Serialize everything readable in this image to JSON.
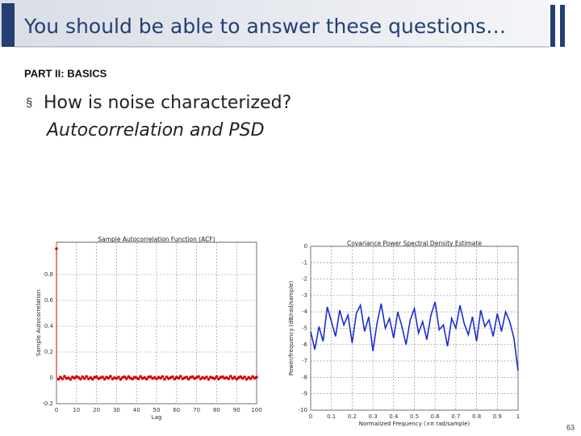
{
  "header": {
    "title": "You should be able to answer these questions…"
  },
  "section": "PART II: BASICS",
  "bullet": {
    "marker": "§",
    "question": "How is noise characterized?",
    "answer": "Autocorrelation and PSD"
  },
  "page_number": "63",
  "chart_data": [
    {
      "type": "stem",
      "title": "Sample Autocorrelation Function (ACF)",
      "x_label": "Lag",
      "y_label": "Sample Autocorrelation",
      "color": "#d40000",
      "grid": true,
      "xlim": [
        0,
        100
      ],
      "xticks": [
        0,
        10,
        20,
        30,
        40,
        50,
        60,
        70,
        80,
        90,
        100
      ],
      "ylim": [
        -0.2,
        1.05
      ],
      "yticks": [
        -0.2,
        0,
        0.2,
        0.4,
        0.6,
        0.8
      ],
      "values": [
        1,
        -0.01,
        0.005,
        -0.008,
        0.012,
        -0.004,
        0.0,
        -0.012,
        0.006,
        -0.002,
        0.01,
        0.003,
        -0.009,
        0.008,
        -0.005,
        0.011,
        -0.007,
        0.002,
        -0.011,
        0.004,
        0.009,
        -0.006,
        0.0,
        0.007,
        -0.01,
        0.005,
        -0.003,
        0.012,
        -0.008,
        0.001,
        -0.004,
        0.006,
        -0.012,
        0.003,
        0.008,
        -0.006,
        0.01,
        -0.002,
        -0.009,
        0.005,
        0.0,
        -0.007,
        0.011,
        -0.004,
        0.002,
        -0.01,
        0.006,
        0.009,
        -0.005,
        0.003,
        -0.008,
        0.004,
        -0.002,
        0.01,
        -0.011,
        0.007,
        -0.006,
        0.001,
        0.008,
        -0.009,
        0.005,
        -0.003,
        0.012,
        -0.007,
        0.0,
        0.006,
        -0.01,
        0.004,
        0.009,
        -0.005,
        0.002,
        0.011,
        -0.008,
        0.003,
        -0.004,
        0.007,
        -0.012,
        0.005,
        0.0,
        -0.006,
        0.01,
        -0.009,
        0.004,
        0.008,
        -0.003,
        0.002,
        -0.007,
        0.012,
        -0.005,
        0.006,
        -0.01,
        0.001,
        0.009,
        -0.004,
        0.007,
        -0.011,
        0.003,
        -0.006,
        0.01,
        -0.002,
        0.005
      ]
    },
    {
      "type": "line",
      "title": "Covariance Power Spectral Density Estimate",
      "x_label": "Normalized Frequency (×π rad/sample)",
      "y_label": "Power/frequency (dB/rad/sample)",
      "color": "#1a2fd0",
      "grid": true,
      "xlim": [
        0,
        1
      ],
      "xticks": [
        0,
        0.1,
        0.2,
        0.3,
        0.4,
        0.5,
        0.6,
        0.7,
        0.8,
        0.9,
        1
      ],
      "ylim": [
        -10,
        0
      ],
      "yticks": [
        -10,
        -9,
        -8,
        -7,
        -6,
        -5,
        -4,
        -3,
        -2,
        -1,
        0
      ],
      "x": [
        0,
        0.02,
        0.04,
        0.06,
        0.08,
        0.1,
        0.12,
        0.14,
        0.16,
        0.18,
        0.2,
        0.22,
        0.24,
        0.26,
        0.28,
        0.3,
        0.32,
        0.34,
        0.36,
        0.38,
        0.4,
        0.42,
        0.44,
        0.46,
        0.48,
        0.5,
        0.52,
        0.54,
        0.56,
        0.58,
        0.6,
        0.62,
        0.64,
        0.66,
        0.68,
        0.7,
        0.72,
        0.74,
        0.76,
        0.78,
        0.8,
        0.82,
        0.84,
        0.86,
        0.88,
        0.9,
        0.92,
        0.94,
        0.96,
        0.98,
        1
      ],
      "values": [
        -5.2,
        -6.3,
        -4.9,
        -5.8,
        -3.7,
        -4.6,
        -5.5,
        -3.9,
        -4.8,
        -4.2,
        -5.9,
        -4.1,
        -3.6,
        -5.2,
        -4.3,
        -6.4,
        -4.7,
        -3.5,
        -5.0,
        -4.4,
        -5.6,
        -4.0,
        -4.9,
        -6.0,
        -4.5,
        -3.8,
        -5.3,
        -4.6,
        -5.7,
        -4.2,
        -3.4,
        -5.1,
        -4.8,
        -6.1,
        -4.4,
        -5.0,
        -3.6,
        -4.7,
        -5.4,
        -4.3,
        -5.8,
        -3.9,
        -4.9,
        -4.5,
        -5.5,
        -4.1,
        -5.2,
        -4.0,
        -4.6,
        -5.6,
        -7.6
      ]
    }
  ]
}
